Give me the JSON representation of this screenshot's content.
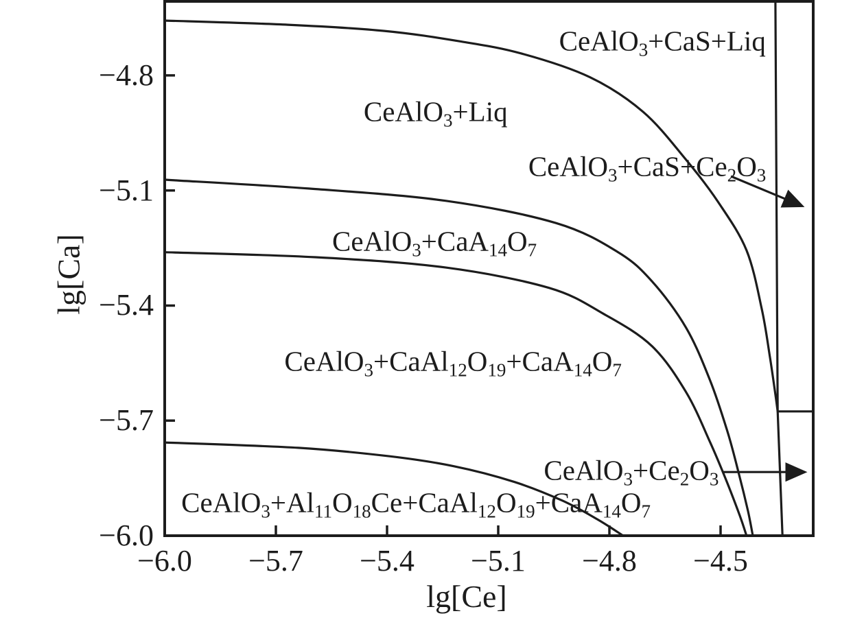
{
  "figure": {
    "background": "#ffffff",
    "ink_color": "#1c1c1c"
  },
  "chart_data": {
    "type": "line",
    "title": "",
    "xlabel": "lg[Ce]",
    "ylabel": "lg[Ca]",
    "xlim": [
      -6.0,
      -4.25
    ],
    "ylim": [
      -6.0,
      -4.607
    ],
    "xticks": [
      -6.0,
      -5.7,
      -5.4,
      -5.1,
      -4.8,
      -4.5
    ],
    "xtick_labels": [
      "−6.0",
      "−5.7",
      "−5.4",
      "−5.1",
      "−4.8",
      "−4.5"
    ],
    "yticks": [
      -4.8,
      -5.1,
      -5.4,
      -5.7,
      -6.0
    ],
    "ytick_labels": [
      "−4.8",
      "−5.1",
      "−5.4",
      "−5.7",
      "−6.0"
    ],
    "grid": false,
    "legend": false,
    "series": [
      {
        "name": "boundary-liq-cas-liq",
        "description": "CeAlO3+Liq / CeAlO3+CaS+Liq phase boundary",
        "smooth": true,
        "points": [
          [
            -6.0,
            -4.657
          ],
          [
            -5.667,
            -4.668
          ],
          [
            -5.407,
            -4.684
          ],
          [
            -5.204,
            -4.711
          ],
          [
            -5.037,
            -4.743
          ],
          [
            -4.852,
            -4.805
          ],
          [
            -4.709,
            -4.895
          ],
          [
            -4.593,
            -5.02
          ],
          [
            -4.506,
            -5.131
          ],
          [
            -4.43,
            -5.256
          ],
          [
            -4.389,
            -5.408
          ],
          [
            -4.367,
            -5.533
          ],
          [
            -4.352,
            -5.632
          ],
          [
            -4.346,
            -5.676
          ]
        ]
      },
      {
        "name": "boundary-liq-caa14o7",
        "description": "CeAlO3+Liq / CeAlO3+CaA14O7 phase boundary",
        "smooth": true,
        "points": [
          [
            -6.0,
            -5.072
          ],
          [
            -5.611,
            -5.095
          ],
          [
            -5.241,
            -5.127
          ],
          [
            -4.944,
            -5.185
          ],
          [
            -4.778,
            -5.26
          ],
          [
            -4.685,
            -5.337
          ],
          [
            -4.593,
            -5.458
          ],
          [
            -4.528,
            -5.596
          ],
          [
            -4.481,
            -5.73
          ],
          [
            -4.45,
            -5.841
          ],
          [
            -4.426,
            -5.936
          ],
          [
            -4.413,
            -6.0
          ]
        ]
      },
      {
        "name": "boundary-caa14o7-caal12o19",
        "description": "CeAlO3+CaA14O7 / CeAlO3+CaAl12O19+CaA14O7 phase boundary",
        "smooth": true,
        "points": [
          [
            -6.0,
            -5.261
          ],
          [
            -5.593,
            -5.274
          ],
          [
            -5.241,
            -5.301
          ],
          [
            -4.963,
            -5.354
          ],
          [
            -4.815,
            -5.422
          ],
          [
            -4.685,
            -5.506
          ],
          [
            -4.593,
            -5.626
          ],
          [
            -4.528,
            -5.757
          ],
          [
            -4.485,
            -5.855
          ],
          [
            -4.448,
            -5.948
          ],
          [
            -4.43,
            -6.0
          ]
        ]
      },
      {
        "name": "boundary-al11o18ce",
        "description": "CeAlO3+CaAl12O19+CaA14O7 / CeAlO3+Al11O18Ce+CaAl12O19+CaA14O7 phase boundary",
        "smooth": true,
        "points": [
          [
            -6.0,
            -5.757
          ],
          [
            -5.639,
            -5.771
          ],
          [
            -5.393,
            -5.793
          ],
          [
            -5.219,
            -5.819
          ],
          [
            -5.056,
            -5.86
          ],
          [
            -4.926,
            -5.909
          ],
          [
            -4.833,
            -5.957
          ],
          [
            -4.763,
            -6.0
          ]
        ]
      },
      {
        "name": "boundary-right-vertical",
        "description": "Near-vertical boundary of Ce2O3-bearing strip",
        "smooth": false,
        "points": [
          [
            -4.352,
            -4.607
          ],
          [
            -4.346,
            -5.676
          ],
          [
            -4.333,
            -6.0
          ]
        ]
      },
      {
        "name": "boundary-right-horizontal",
        "description": "Horizontal boundary inside right strip",
        "smooth": false,
        "points": [
          [
            -4.346,
            -5.676
          ],
          [
            -4.25,
            -5.676
          ]
        ]
      }
    ],
    "annotations": {
      "regions": [
        {
          "text": "CeAlO_3_+CaS+Liq",
          "x": -4.657,
          "y": -4.711
        },
        {
          "text": "CeAlO_3_+Liq",
          "x": -5.269,
          "y": -4.895
        },
        {
          "text": "CeAlO_3_+CaS+Ce_2_O_3_",
          "x": -4.698,
          "y": -5.038
        },
        {
          "text": "CeAlO_3_+CaA_14_O_7_",
          "x": -5.272,
          "y": -5.233
        },
        {
          "text": "CeAlO_3_+CaAl_12_O_19_+CaA_14_O_7_",
          "x": -5.222,
          "y": -5.546
        },
        {
          "text": "CeAlO_3_+Ce_2_O_3_",
          "x": -4.741,
          "y": -5.83
        },
        {
          "text": "CeAlO_3_+Al_11_O_18_Ce+CaAl_12_O_19_+CaA_14_O_7_",
          "x": -5.322,
          "y": -5.914
        }
      ],
      "arrows": [
        {
          "x1": -4.472,
          "y1": -5.063,
          "x2": -4.281,
          "y2": -5.14
        },
        {
          "x1": -4.494,
          "y1": -5.834,
          "x2": -4.274,
          "y2": -5.834
        }
      ]
    }
  }
}
